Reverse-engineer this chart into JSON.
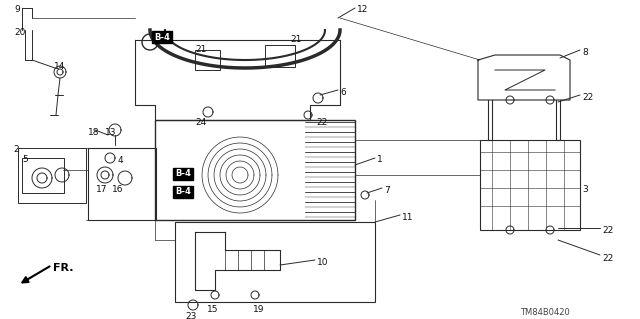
{
  "bg_color": "#ffffff",
  "fig_width": 6.4,
  "fig_height": 3.19,
  "dpi": 100,
  "footer": "TM84B0420",
  "gc": "#2a2a2a",
  "tc": "#111111",
  "lfs": 6.5,
  "b4fs": 6.0
}
